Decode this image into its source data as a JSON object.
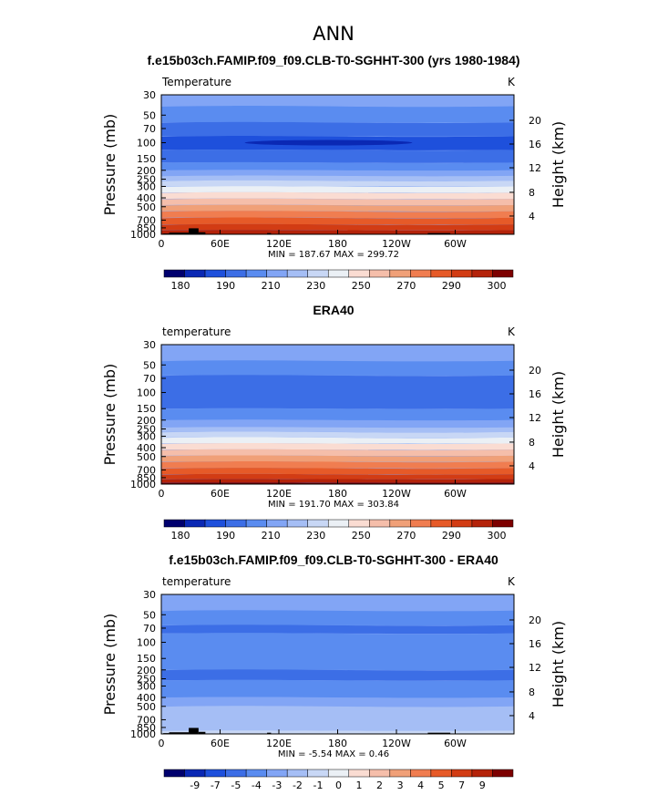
{
  "page_title": "ANN",
  "colors": {
    "temp_levels": [
      "#00006e",
      "#0a28b4",
      "#1e50dc",
      "#3c6ee6",
      "#5a8cf0",
      "#82a5f5",
      "#a5bef5",
      "#c8d7f5",
      "#ebf0f5",
      "#fadcd2",
      "#f5beaa",
      "#f0a078",
      "#f07d50",
      "#e65a28",
      "#d23c14",
      "#b4230a",
      "#7d0000"
    ],
    "div_levels": [
      "#00006e",
      "#0a28b4",
      "#1e50dc",
      "#3c6ee6",
      "#5a8cf0",
      "#82a5f5",
      "#a5bef5",
      "#c8d7f5",
      "#ebf0f5",
      "#fadcd2",
      "#f5beaa",
      "#f0a078",
      "#f07d50",
      "#e65a28",
      "#d23c14",
      "#b4230a",
      "#7d0000"
    ],
    "topography": "#000000"
  },
  "chart_data": [
    {
      "type": "heatmap",
      "title": "f.e15b03ch.FAMIP.f09_f09.CLB-T0-SGHHT-300 (yrs 1980-1984)",
      "left_label": "Temperature",
      "units": "K",
      "ylabel": "Pressure (mb)",
      "y2label": "Height (km)",
      "xticks": [
        "0",
        "60E",
        "120E",
        "180",
        "120W",
        "60W"
      ],
      "yticks": [
        "30",
        "50",
        "70",
        "100",
        "150",
        "200",
        "250",
        "300",
        "400",
        "500",
        "700",
        "850",
        "1000"
      ],
      "y2ticks": [
        "20",
        "16",
        "12",
        "8",
        "4"
      ],
      "stats": "MIN = 187.67 MAX = 299.72",
      "colorbar_labels": [
        "180",
        "190",
        "210",
        "230",
        "250",
        "270",
        "290",
        "300"
      ],
      "bands": [
        {
          "from": 30,
          "to": 40,
          "level": 5
        },
        {
          "from": 40,
          "to": 60,
          "level": 4
        },
        {
          "from": 60,
          "to": 85,
          "level": 3
        },
        {
          "from": 85,
          "to": 120,
          "level": 2
        },
        {
          "from": 120,
          "to": 165,
          "level": 3
        },
        {
          "from": 165,
          "to": 200,
          "level": 4
        },
        {
          "from": 200,
          "to": 230,
          "level": 5
        },
        {
          "from": 230,
          "to": 260,
          "level": 6
        },
        {
          "from": 260,
          "to": 300,
          "level": 7
        },
        {
          "from": 300,
          "to": 350,
          "level": 8
        },
        {
          "from": 350,
          "to": 410,
          "level": 9
        },
        {
          "from": 410,
          "to": 480,
          "level": 10
        },
        {
          "from": 480,
          "to": 560,
          "level": 11
        },
        {
          "from": 560,
          "to": 660,
          "level": 12
        },
        {
          "from": 660,
          "to": 780,
          "level": 13
        },
        {
          "from": 780,
          "to": 900,
          "level": 14
        },
        {
          "from": 900,
          "to": 1000,
          "level": 15
        }
      ],
      "topography": [
        {
          "lon_from": 2,
          "lon_to": 8,
          "p_top": 980
        },
        {
          "lon_from": 8,
          "lon_to": 28,
          "p_top": 960
        },
        {
          "lon_from": 28,
          "lon_to": 38,
          "p_top": 860
        },
        {
          "lon_from": 38,
          "lon_to": 45,
          "p_top": 950
        },
        {
          "lon_from": 108,
          "lon_to": 112,
          "p_top": 970
        },
        {
          "lon_from": 272,
          "lon_to": 295,
          "p_top": 970
        }
      ]
    },
    {
      "type": "heatmap",
      "title": "ERA40",
      "left_label": "temperature",
      "units": "K",
      "ylabel": "Pressure (mb)",
      "y2label": "Height (km)",
      "xticks": [
        "0",
        "60E",
        "120E",
        "180",
        "120W",
        "60W"
      ],
      "yticks": [
        "30",
        "50",
        "70",
        "100",
        "150",
        "200",
        "250",
        "300",
        "400",
        "500",
        "700",
        "850",
        "1000"
      ],
      "y2ticks": [
        "20",
        "16",
        "12",
        "8",
        "4"
      ],
      "stats": "MIN = 191.70 MAX = 303.84",
      "colorbar_labels": [
        "180",
        "190",
        "210",
        "230",
        "250",
        "270",
        "290",
        "300"
      ],
      "bands": [
        {
          "from": 30,
          "to": 45,
          "level": 5
        },
        {
          "from": 45,
          "to": 65,
          "level": 4
        },
        {
          "from": 65,
          "to": 150,
          "level": 3
        },
        {
          "from": 150,
          "to": 200,
          "level": 4
        },
        {
          "from": 200,
          "to": 240,
          "level": 5
        },
        {
          "from": 240,
          "to": 270,
          "level": 6
        },
        {
          "from": 270,
          "to": 310,
          "level": 7
        },
        {
          "from": 310,
          "to": 360,
          "level": 8
        },
        {
          "from": 360,
          "to": 420,
          "level": 9
        },
        {
          "from": 420,
          "to": 490,
          "level": 10
        },
        {
          "from": 490,
          "to": 570,
          "level": 11
        },
        {
          "from": 570,
          "to": 670,
          "level": 12
        },
        {
          "from": 670,
          "to": 780,
          "level": 13
        },
        {
          "from": 780,
          "to": 880,
          "level": 14
        },
        {
          "from": 880,
          "to": 960,
          "level": 15
        },
        {
          "from": 960,
          "to": 1000,
          "level": 16
        }
      ],
      "topography": []
    },
    {
      "type": "heatmap",
      "title": "f.e15b03ch.FAMIP.f09_f09.CLB-T0-SGHHT-300 - ERA40",
      "left_label": "temperature",
      "units": "K",
      "ylabel": "Pressure (mb)",
      "y2label": "Height (km)",
      "xticks": [
        "0",
        "60E",
        "120E",
        "180",
        "120W",
        "60W"
      ],
      "yticks": [
        "30",
        "50",
        "70",
        "100",
        "150",
        "200",
        "250",
        "300",
        "400",
        "500",
        "700",
        "850",
        "1000"
      ],
      "y2ticks": [
        "20",
        "16",
        "12",
        "8",
        "4"
      ],
      "stats": "MIN = -5.54 MAX = 0.46",
      "colorbar_labels": [
        "-9",
        "-7",
        "-5",
        "-4",
        "-3",
        "-2",
        "-1",
        "0",
        "1",
        "2",
        "3",
        "4",
        "5",
        "7",
        "9"
      ],
      "bands": [
        {
          "from": 30,
          "to": 45,
          "level": 5
        },
        {
          "from": 45,
          "to": 65,
          "level": 4
        },
        {
          "from": 65,
          "to": 80,
          "level": 3
        },
        {
          "from": 80,
          "to": 200,
          "level": 4
        },
        {
          "from": 200,
          "to": 260,
          "level": 3
        },
        {
          "from": 260,
          "to": 400,
          "level": 4
        },
        {
          "from": 400,
          "to": 500,
          "level": 5
        },
        {
          "from": 500,
          "to": 920,
          "level": 6
        },
        {
          "from": 920,
          "to": 1000,
          "level": 7
        }
      ],
      "topography": [
        {
          "lon_from": 2,
          "lon_to": 8,
          "p_top": 980
        },
        {
          "lon_from": 8,
          "lon_to": 28,
          "p_top": 960
        },
        {
          "lon_from": 28,
          "lon_to": 38,
          "p_top": 860
        },
        {
          "lon_from": 38,
          "lon_to": 45,
          "p_top": 950
        },
        {
          "lon_from": 108,
          "lon_to": 112,
          "p_top": 970
        },
        {
          "lon_from": 272,
          "lon_to": 295,
          "p_top": 970
        }
      ]
    }
  ]
}
